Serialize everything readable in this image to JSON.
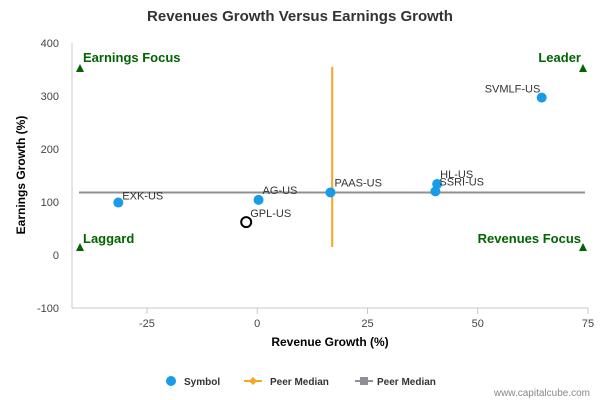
{
  "chart_data": {
    "type": "scatter",
    "title": "Revenues Growth Versus Earnings Growth",
    "xlabel": "Revenue Growth (%)",
    "ylabel": "Earnings Growth (%)",
    "xlim": [
      -42,
      75
    ],
    "ylim": [
      -100,
      400
    ],
    "xticks": [
      -25,
      0,
      25,
      50,
      75
    ],
    "yticks": [
      -100,
      0,
      100,
      200,
      300,
      400
    ],
    "grid": false,
    "legend_position": "bottom",
    "series": [
      {
        "name": "Symbol",
        "color": "#1a9be8",
        "points": [
          {
            "label": "EXK-US",
            "x": -31.5,
            "y": 99
          },
          {
            "label": "AG-US",
            "x": 0.3,
            "y": 104
          },
          {
            "label": "PAAS-US",
            "x": 16.6,
            "y": 118
          },
          {
            "label": "HL-US",
            "x": 40.8,
            "y": 134
          },
          {
            "label": "SSRI-US",
            "x": 40.4,
            "y": 120
          },
          {
            "label": "SVMLF-US",
            "x": 64.5,
            "y": 297
          }
        ]
      }
    ],
    "highlight_point": {
      "label": "GPL-US",
      "x": -2.5,
      "y": 62,
      "color": "#000000"
    },
    "peer_median_revenue": {
      "name": "Peer Median",
      "x": 17,
      "y_from": 15,
      "y_to": 355,
      "color": "#f5a623"
    },
    "peer_median_earnings": {
      "name": "Peer Median",
      "y": 118,
      "color": "#8c9096"
    },
    "quadrants": [
      {
        "label": "Earnings Focus",
        "anchor": "top-left"
      },
      {
        "label": "Leader",
        "anchor": "top-right"
      },
      {
        "label": "Laggard",
        "anchor": "bottom-left"
      },
      {
        "label": "Revenues Focus",
        "anchor": "bottom-right"
      }
    ],
    "quadrant_color": "#006400"
  },
  "credit": "www.capitalcube.com"
}
